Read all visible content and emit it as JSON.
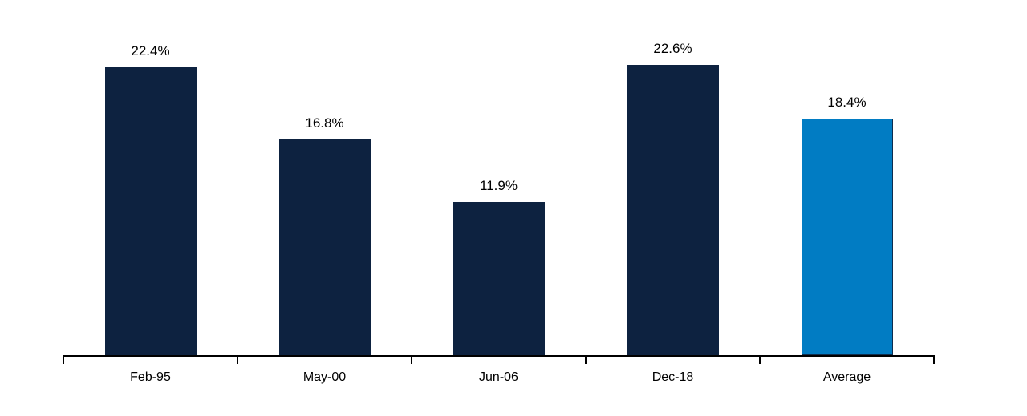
{
  "chart_data": {
    "type": "bar",
    "title": "",
    "xlabel": "",
    "ylabel": "",
    "categories": [
      "Feb-95",
      "May-00",
      "Jun-06",
      "Dec-18",
      "Average"
    ],
    "values": [
      22.4,
      16.8,
      11.9,
      22.6,
      18.4
    ],
    "value_labels": [
      "22.4%",
      "16.8%",
      "11.9%",
      "22.6%",
      "18.4%"
    ],
    "bar_colors": [
      "#0d2240",
      "#0d2240",
      "#0d2240",
      "#0d2240",
      "#017cc3"
    ],
    "bar_border_colors": [
      "#0d2240",
      "#0d2240",
      "#0d2240",
      "#0d2240",
      "#0d2d4e"
    ],
    "axis_color": "#000000",
    "label_color": "#000000",
    "ylim": [
      0,
      25
    ],
    "grid": false,
    "legend": false,
    "y_axis_visible": false,
    "value_labels_position": "above-bars"
  }
}
